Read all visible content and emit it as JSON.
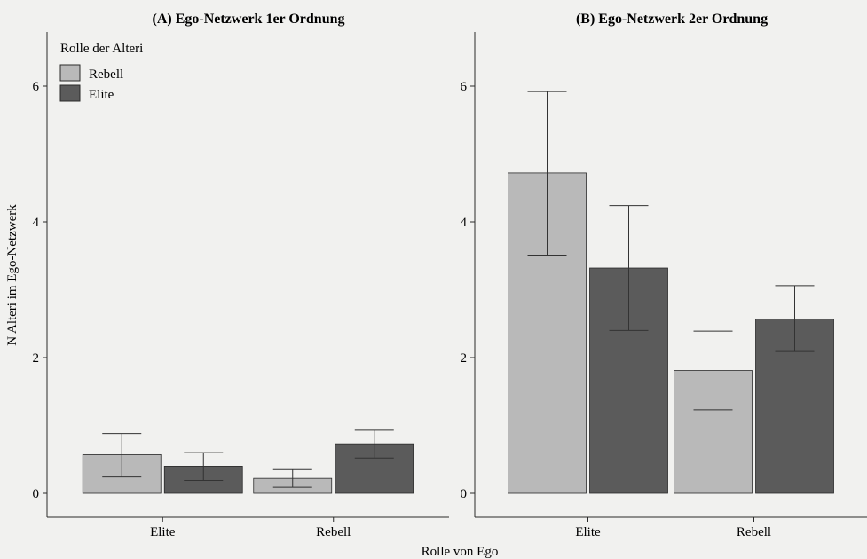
{
  "colors": {
    "rebell": "#b9b9b9",
    "elite": "#5b5b5b",
    "axis": "#2a2a2a",
    "background": "#f1f1ef"
  },
  "chart_data": [
    {
      "type": "bar",
      "title": "(A) Ego-Netzwerk 1er Ordnung",
      "categories": [
        "Elite",
        "Rebell"
      ],
      "xlabel": "Rolle von Ego",
      "ylabel": "N Alteri im Ego-Netzwerk",
      "ylim": [
        0,
        7
      ],
      "yticks": [
        0,
        2,
        4,
        6
      ],
      "grid": false,
      "series": [
        {
          "name": "Rebell",
          "color_key": "rebell",
          "values": [
            0.57,
            0.22
          ],
          "err_low": [
            0.24,
            0.09
          ],
          "err_high": [
            0.88,
            0.35
          ]
        },
        {
          "name": "Elite",
          "color_key": "elite",
          "values": [
            0.4,
            0.73
          ],
          "err_low": [
            0.19,
            0.52
          ],
          "err_high": [
            0.6,
            0.93
          ]
        }
      ]
    },
    {
      "type": "bar",
      "title": "(B) Ego-Netzwerk 2er Ordnung",
      "categories": [
        "Elite",
        "Rebell"
      ],
      "xlabel": "Rolle von Ego",
      "ylabel": "",
      "ylim": [
        0,
        7
      ],
      "yticks": [
        0,
        2,
        4,
        6
      ],
      "grid": false,
      "series": [
        {
          "name": "Rebell",
          "color_key": "rebell",
          "values": [
            4.72,
            1.81
          ],
          "err_low": [
            3.51,
            1.23
          ],
          "err_high": [
            5.92,
            2.39
          ]
        },
        {
          "name": "Elite",
          "color_key": "elite",
          "values": [
            3.32,
            2.57
          ],
          "err_low": [
            2.4,
            2.09
          ],
          "err_high": [
            4.24,
            3.06
          ]
        }
      ]
    }
  ],
  "legend": {
    "title": "Rolle der Alteri",
    "placement": "top-left",
    "items": [
      {
        "label": "Rebell",
        "color_key": "rebell"
      },
      {
        "label": "Elite",
        "color_key": "elite"
      }
    ]
  },
  "xlabel": "Rolle von Ego"
}
